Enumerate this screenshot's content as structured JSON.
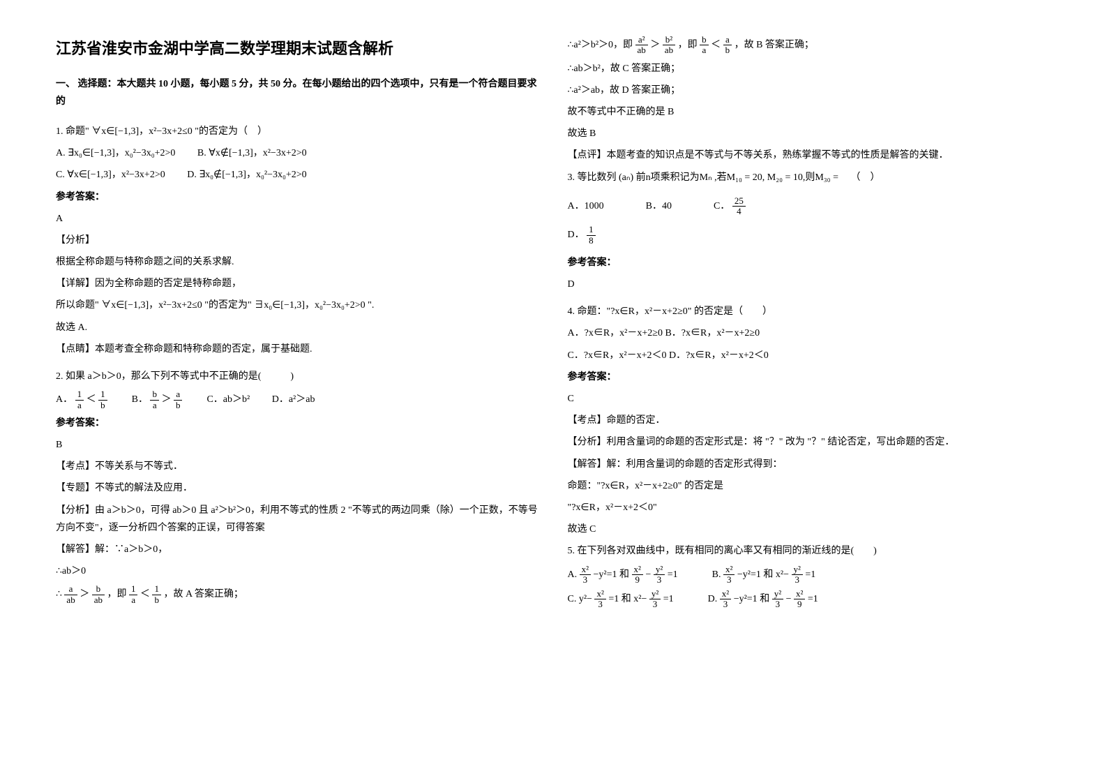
{
  "page": {
    "title": "江苏省淮安市金湖中学高二数学理期末试题含解析",
    "sectionHeader": "一、 选择题：本大题共 10 小题，每小题 5 分，共 50 分。在每小题给出的四个选项中，只有是一个符合题目要求的"
  },
  "q1": {
    "stem": "1. 命题\" ∀x∈[−1,3]，x²−3x+2≤0 \"的否定为（　）",
    "optA": "A. ∃x₀∈[−1,3]，x₀²−3x₀+2>0",
    "optB": "B. ∀x∉[−1,3]，x²−3x+2>0",
    "optC": "C. ∀x∈[−1,3]，x²−3x+2>0",
    "optD": "D. ∃x₀∉[−1,3]，x₀²−3x₀+2>0",
    "ansLabel": "参考答案：",
    "ans": "A",
    "analyze1": "【分析】",
    "analyze2": "根据全称命题与特称命题之间的关系求解.",
    "detail1": "【详解】因为全称命题的否定是特称命题，",
    "detail2": "所以命题\" ∀x∈[−1,3]，x²−3x+2≤0 \"的否定为\" ∃x₀∈[−1,3]，x₀²−3x₀+2>0 \".",
    "detail3": "故选 A.",
    "comment": "【点睛】本题考查全称命题和特称命题的否定，属于基础题."
  },
  "q2": {
    "stem": "2. 如果 a＞b＞0，那么下列不等式中不正确的是(　　　)",
    "optA_prefix": "A．",
    "optB_prefix": "B．",
    "optC": "C．ab＞b²",
    "optD": "D．a²＞ab",
    "fracA_num": "1",
    "fracA_den": "a",
    "fracA2_num": "1",
    "fracA2_den": "b",
    "fracB_num": "b",
    "fracB_den": "a",
    "fracB2_num": "a",
    "fracB2_den": "b",
    "lt": "＜",
    "gt": "＞",
    "ansLabel": "参考答案：",
    "ans": "B",
    "test1": "【考点】不等关系与不等式．",
    "test2": "【专题】不等式的解法及应用．",
    "analyze": "【分析】由 a＞b＞0，可得 ab＞0 且 a²＞b²＞0，利用不等式的性质 2 \"不等式的两边同乘（除）一个正数，不等号方向不变\"，逐一分析四个答案的正误，可得答案",
    "solve1": "【解答】解：∵a＞b＞0，",
    "solve2": "∴ab＞0",
    "solve3_prefix": "∴",
    "solve3_mid": "，即",
    "solve3_suffix": "，故 A 答案正确；"
  },
  "right": {
    "r1_prefix": "∴a²＞b²＞0，即",
    "r1_mid": "，即",
    "r1_suffix": "，故 B 答案正确；",
    "r2": "∴ab＞b²，故 C 答案正确；",
    "r3": "∴a²＞ab，故 D 答案正确；",
    "r4": "故不等式中不正确的是 B",
    "r5": "故选 B",
    "r6": "【点评】本题考查的知识点是不等式与不等关系，熟练掌握不等式的性质是解答的关键．"
  },
  "q3": {
    "stem_prefix": "3. 等比数列 (aₙ) 前n项乘积记为Mₙ ,若M₁₀ = 20, M₂₀ = 10,则M₃₀ =",
    "stem_suffix": "（　）",
    "optA": "A．1000",
    "optB": "B．40",
    "optC_prefix": "C．",
    "optC_num": "25",
    "optC_den": "4",
    "optD_prefix": "D．",
    "optD_num": "1",
    "optD_den": "8",
    "ansLabel": "参考答案：",
    "ans": "D"
  },
  "q4": {
    "stem": "4. 命题：\"?x∈R，x²－x+2≥0\" 的否定是（　　）",
    "optA": "A．?x∈R，x²－x+2≥0",
    "optB": "B．?x∈R，x²－x+2≥0",
    "optC": "C．?x∈R，x²－x+2＜0",
    "optD": "D．?x∈R，x²－x+2＜0",
    "ansLabel": "参考答案：",
    "ans": "C",
    "t1": "【考点】命题的否定．",
    "t2": "【分析】利用含量词的命题的否定形式是：将 \"？\" 改为 \"？\" 结论否定，写出命题的否定．",
    "t3": "【解答】解：利用含量词的命题的否定形式得到：",
    "t4": "命题：\"?x∈R，x²－x+2≥0\" 的否定是",
    "t5": "\"?x∈R，x²－x+2＜0\"",
    "t6": "故选 C"
  },
  "q5": {
    "stem": "5. 在下列各对双曲线中，既有相同的离心率又有相同的渐近线的是(　　)",
    "optA_prefix": "A.",
    "optB_prefix": "B.",
    "optC_prefix": "C.",
    "optD_prefix": "D.",
    "and": " 和 ",
    "x2": "x²",
    "y2": "y²",
    "n3": "3",
    "n9": "9",
    "eq1": "=1",
    "minus": "−",
    "minusy2eq1": "−y²=1",
    "minusx2eq1": "和 x²−",
    "y2minus": "y²−",
    "x2minus": "x²−"
  },
  "colors": {
    "text": "#000000",
    "background": "#ffffff"
  }
}
